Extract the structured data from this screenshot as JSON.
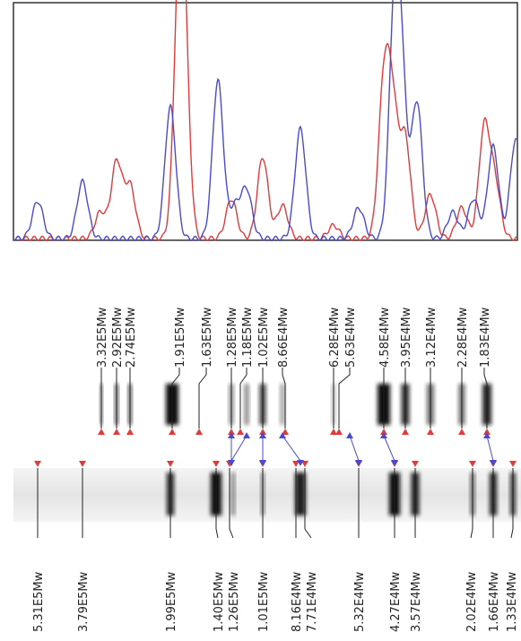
{
  "top_labels": [
    "3.32E5Mw",
    "2.92E5Mw",
    "2.74E5Mw",
    "1.91E5Mw",
    "1.63E5Mw",
    "1.28E5Mw",
    "1.18E5Mw",
    "1.02E5Mw",
    "8.66E4Mw",
    "6.28E4Mw",
    "5.63E4Mw",
    "4.58E4Mw",
    "3.95E4Mw",
    "3.12E4Mw",
    "2.28E4Mw",
    "1.83E4Mw"
  ],
  "bottom_labels": [
    "5.31E5Mw",
    "3.79E5Mw",
    "1.99E5Mw",
    "1.40E5Mw",
    "1.26E5Mw",
    "1.01E5Mw",
    "8.16E4Mw",
    "7.71E4Mw",
    "5.32E4Mw",
    "4.27E4Mw",
    "3.57E4Mw",
    "2.02E4Mw",
    "1.66E4Mw",
    "1.33E4Mw"
  ]
}
